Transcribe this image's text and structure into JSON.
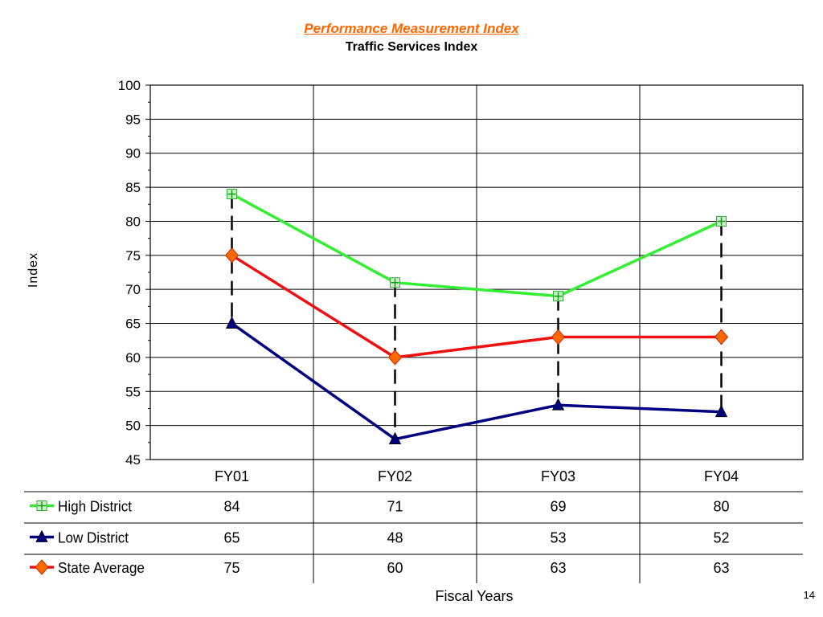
{
  "header": {
    "title": "Performance Measurement Index",
    "subtitle": "Traffic Services Index"
  },
  "page_number": "14",
  "chart_data": {
    "type": "line",
    "title": "Performance Measurement Index",
    "subtitle": "Traffic Services Index",
    "xlabel": "Fiscal Years",
    "ylabel": "Index",
    "categories": [
      "FY01",
      "FY02",
      "FY03",
      "FY04"
    ],
    "ylim": [
      45,
      100
    ],
    "y_ticks": [
      100,
      95,
      90,
      85,
      80,
      75,
      70,
      65,
      60,
      55,
      50,
      45
    ],
    "grid": true,
    "legend": "data-table",
    "series": [
      {
        "name": "High District",
        "values": [
          84,
          71,
          69,
          80
        ],
        "color": "#33ee33",
        "marker": "plus-square"
      },
      {
        "name": "Low District",
        "values": [
          65,
          48,
          53,
          52
        ],
        "color": "#000080",
        "marker": "triangle"
      },
      {
        "name": "State Average",
        "values": [
          75,
          60,
          63,
          63
        ],
        "color": "#ee1111",
        "marker": "diamond"
      }
    ],
    "data_table": {
      "rows": [
        {
          "label": "High District",
          "cells": [
            "84",
            "71",
            "69",
            "80"
          ]
        },
        {
          "label": "Low District",
          "cells": [
            "65",
            "48",
            "53",
            "52"
          ]
        },
        {
          "label": "State Average",
          "cells": [
            "75",
            "60",
            "63",
            "63"
          ]
        }
      ]
    }
  }
}
